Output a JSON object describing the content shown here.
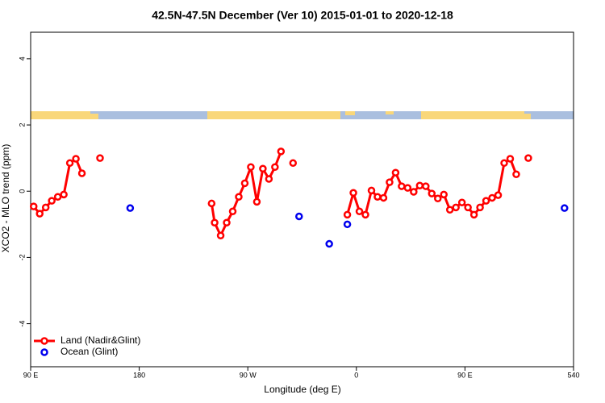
{
  "chart_data": {
    "type": "line",
    "title": "42.5N-47.5N December (Ver 10)   2015-01-01 to 2020-12-18",
    "x_label": "Longitude (deg E)",
    "y_label": "XCO2 - MLO trend (ppm)",
    "xlim": [
      90,
      540
    ],
    "xticks": [
      {
        "value": 90,
        "label": "90 E"
      },
      180,
      {
        "value": 270,
        "label": "90 W"
      },
      {
        "value": 360,
        "label": "0"
      },
      {
        "value": 450,
        "label": "90 E"
      },
      540
    ],
    "ylim": [
      -5.3,
      4.8
    ],
    "yticks": [
      -4,
      -2,
      0,
      2,
      4
    ],
    "legend": "bottom-left",
    "series": [
      {
        "name": "Land (Nadir&Glint)",
        "color": "#ff0000",
        "line": true,
        "x": [
          92.5,
          97.5,
          102.5,
          107.5,
          112.5,
          117.5,
          122.5,
          127.5,
          132.5,
          137.5,
          147.5,
          152.5,
          240,
          242.5,
          247.5,
          252.5,
          257.5,
          262.5,
          267.5,
          272.5,
          277.5,
          282.5,
          287.5,
          292.5,
          297.5,
          302.5,
          307.5,
          312.5,
          352.5,
          357.5,
          362.5,
          367.5,
          372.5,
          377.5,
          382.5,
          387.5,
          392.5,
          397.5,
          402.5,
          407.5,
          412.5,
          417.5,
          422.5,
          427.5,
          432.5,
          437.5,
          442.5,
          447.5,
          452.5,
          457.5,
          462.5,
          467.5,
          472.5,
          477.5,
          482.5,
          487.5,
          492.5,
          497.5,
          502.5
        ],
        "values": [
          -0.46,
          -0.68,
          -0.49,
          -0.29,
          -0.17,
          -0.1,
          0.85,
          0.98,
          0.54,
          null,
          1.0,
          null,
          -0.37,
          -0.95,
          -1.34,
          -0.95,
          -0.61,
          -0.17,
          0.24,
          0.73,
          -0.32,
          0.68,
          0.37,
          0.73,
          1.2,
          null,
          0.85,
          null,
          -0.71,
          -0.05,
          -0.61,
          -0.71,
          0.02,
          -0.17,
          -0.2,
          0.27,
          0.56,
          0.15,
          0.1,
          -0.02,
          0.17,
          0.15,
          -0.07,
          -0.22,
          -0.1,
          -0.56,
          -0.49,
          -0.34,
          -0.49,
          -0.71,
          -0.49,
          -0.29,
          -0.2,
          -0.12,
          0.85,
          0.98,
          0.51,
          null,
          1.0
        ]
      },
      {
        "name": "Ocean (Glint)",
        "color": "#0000ee",
        "line": false,
        "x": [
          172.5,
          312.5,
          337.5,
          352.5,
          532.5
        ],
        "values": [
          -0.51,
          -0.76,
          -1.59,
          -1.0,
          -0.51
        ]
      }
    ]
  }
}
